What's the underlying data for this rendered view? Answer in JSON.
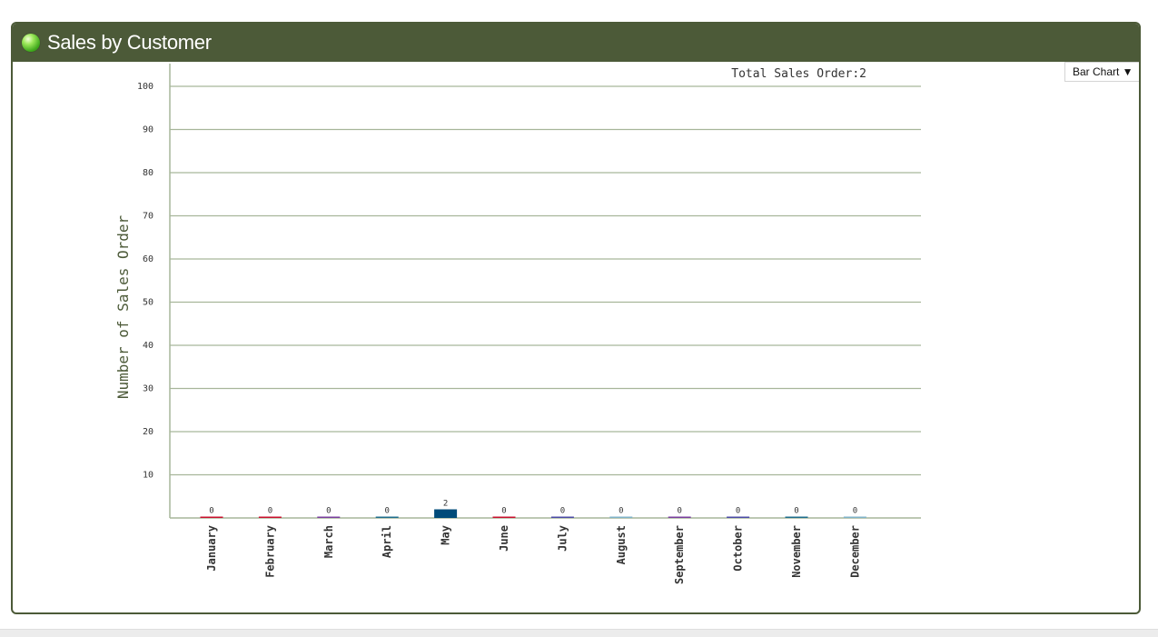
{
  "panel": {
    "title": "Sales by Customer",
    "chart_type_label": "Bar Chart ▼"
  },
  "chart_data": {
    "type": "bar",
    "categories": [
      "January",
      "February",
      "March",
      "April",
      "May",
      "June",
      "July",
      "August",
      "September",
      "October",
      "November",
      "December"
    ],
    "values": [
      0,
      0,
      0,
      0,
      2,
      0,
      0,
      0,
      0,
      0,
      0,
      0
    ],
    "data_labels": [
      "0",
      "0",
      "0",
      "0",
      "2",
      "0",
      "0",
      "0",
      "0",
      "0",
      "0",
      "0"
    ],
    "title": "",
    "annotation": "Total Sales Order:2",
    "xlabel": "",
    "ylabel": "Number of Sales Order",
    "ylim": [
      0,
      100
    ],
    "yticks": [
      10,
      20,
      30,
      40,
      50,
      60,
      70,
      80,
      90,
      100
    ],
    "grid": true,
    "bar_colors": [
      "#c8102e",
      "#c8102e",
      "#7a3f9d",
      "#1f6e8c",
      "#004b7a",
      "#c8102e",
      "#4b4ba6",
      "#7fb2c8",
      "#7a3f9d",
      "#4b4ba6",
      "#1f6e8c",
      "#7fb2c8"
    ],
    "colors": {
      "axis": "#a7b69a",
      "grid": "#a7b69a",
      "text": "#333333",
      "ylabel": "#4c5a38",
      "header": "#4c5a38"
    }
  }
}
